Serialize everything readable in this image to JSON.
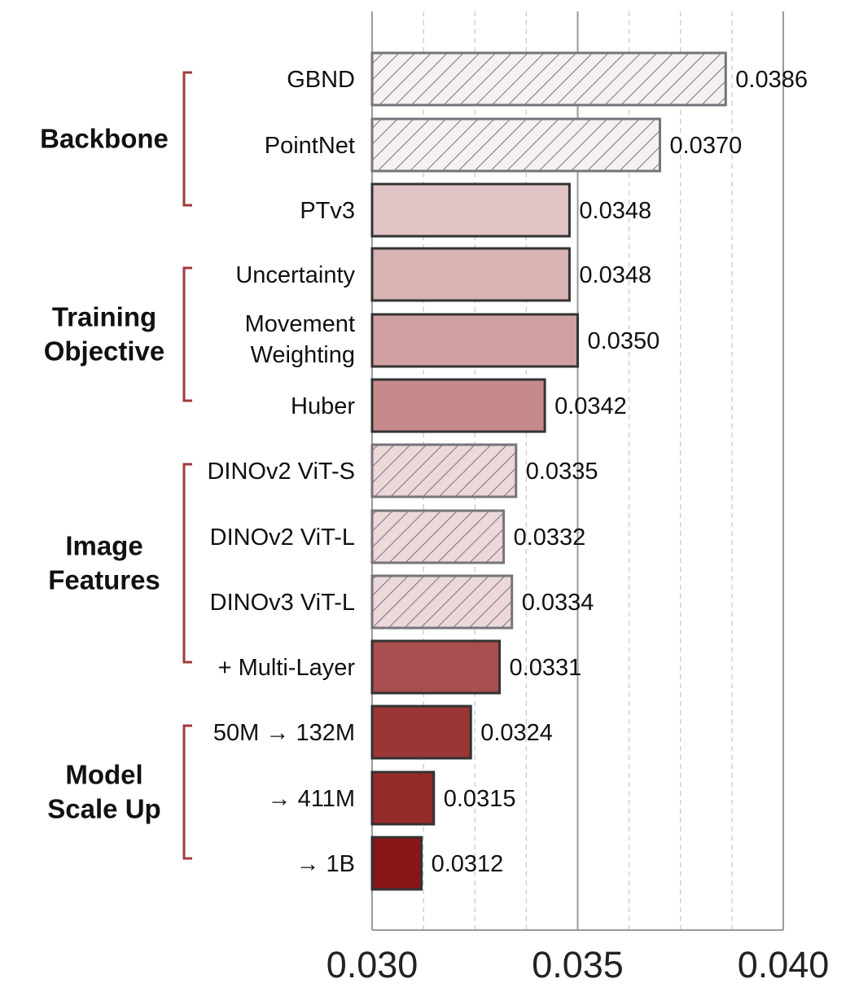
{
  "chart_data": {
    "type": "bar",
    "orientation": "horizontal",
    "title": "",
    "xlabel": "",
    "ylabel": "",
    "xlim": [
      0.03,
      0.04
    ],
    "major_ticks": [
      0.03,
      0.035,
      0.04
    ],
    "major_tick_labels": [
      "0.030",
      "0.035",
      "0.040"
    ],
    "minor_ticks": [
      0.03125,
      0.0325,
      0.03375,
      0.03625,
      0.0375,
      0.03875
    ],
    "grid": true,
    "bars": [
      {
        "label": "GBND",
        "value": 0.0386,
        "value_label": "0.0386",
        "color": "#f6f0f0",
        "hatched": true
      },
      {
        "label": "PointNet",
        "value": 0.037,
        "value_label": "0.0370",
        "color": "#f6f0f0",
        "hatched": true
      },
      {
        "label": "PTv3",
        "value": 0.0348,
        "value_label": "0.0348",
        "color": "#e2c4c6",
        "hatched": false
      },
      {
        "label": "Uncertainty",
        "value": 0.0348,
        "value_label": "0.0348",
        "color": "#d9b2b3",
        "hatched": false
      },
      {
        "label": [
          "Movement",
          "Weighting"
        ],
        "value": 0.035,
        "value_label": "0.0350",
        "color": "#d1a0a1",
        "hatched": false
      },
      {
        "label": "Huber",
        "value": 0.0342,
        "value_label": "0.0342",
        "color": "#c78a8c",
        "hatched": false
      },
      {
        "label": "DINOv2 ViT-S",
        "value": 0.0335,
        "value_label": "0.0335",
        "color": "#ecd8d9",
        "hatched": true
      },
      {
        "label": "DINOv2 ViT-L",
        "value": 0.0332,
        "value_label": "0.0332",
        "color": "#ecd8d9",
        "hatched": true
      },
      {
        "label": "DINOv3 ViT-L",
        "value": 0.0334,
        "value_label": "0.0334",
        "color": "#ecd8d9",
        "hatched": true
      },
      {
        "label": "+ Multi-Layer",
        "value": 0.0331,
        "value_label": "0.0331",
        "color": "#a84e4f",
        "hatched": false
      },
      {
        "label": "50M → 132M",
        "value": 0.0324,
        "value_label": "0.0324",
        "color": "#9b3637",
        "hatched": false
      },
      {
        "label": "→ 411M",
        "value": 0.0315,
        "value_label": "0.0315",
        "color": "#952a2b",
        "hatched": false
      },
      {
        "label": "→ 1B",
        "value": 0.0312,
        "value_label": "0.0312",
        "color": "#8a1518",
        "hatched": false
      }
    ],
    "groups": [
      {
        "name": [
          "Backbone"
        ],
        "first_bar": 0,
        "last_bar": 2
      },
      {
        "name": [
          "Training",
          "Objective"
        ],
        "first_bar": 3,
        "last_bar": 5
      },
      {
        "name": [
          "Image",
          "Features"
        ],
        "first_bar": 6,
        "last_bar": 9
      },
      {
        "name": [
          "Model",
          "Scale Up"
        ],
        "first_bar": 10,
        "last_bar": 12
      }
    ],
    "colors": {
      "bracket": "#a03a3e",
      "bar_edge": "#333333",
      "hatched_edge": "#77737c",
      "axis": "#9a9a9a",
      "grid_minor": "#d0d0d0"
    }
  }
}
